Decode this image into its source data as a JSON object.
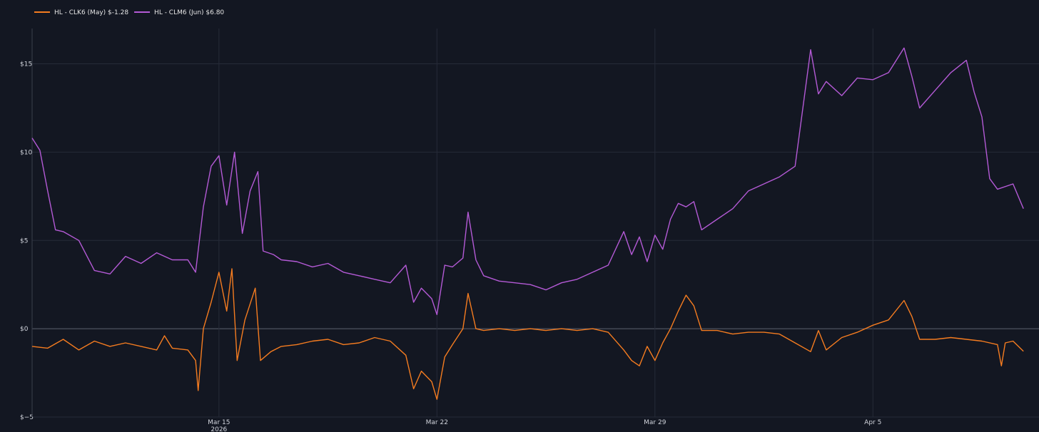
{
  "chart_data": {
    "type": "line",
    "title": "",
    "xlabel": "",
    "ylabel": "",
    "ylim": [
      -5,
      17
    ],
    "xlim": [
      "2026-03-09",
      "2026-04-10T08:00"
    ],
    "grid": true,
    "legend": "top-left",
    "x_ticks": [
      {
        "date": "2026-03-15",
        "label": "Mar 15",
        "sublabel": "2026"
      },
      {
        "date": "2026-03-22",
        "label": "Mar 22",
        "sublabel": ""
      },
      {
        "date": "2026-03-29",
        "label": "Mar 29",
        "sublabel": ""
      },
      {
        "date": "2026-04-05",
        "label": "Apr 5",
        "sublabel": ""
      }
    ],
    "y_ticks": [
      {
        "value": -5,
        "label": "$−5"
      },
      {
        "value": 0,
        "label": "$0"
      },
      {
        "value": 5,
        "label": "$5"
      },
      {
        "value": 10,
        "label": "$10"
      },
      {
        "value": 15,
        "label": "$15"
      }
    ],
    "series": [
      {
        "name": "HL - CLK6 (May) $-1.28",
        "color": "#f57c20",
        "points": [
          [
            "2026-03-09T00:00",
            -1.0
          ],
          [
            "2026-03-09T12:00",
            -1.1
          ],
          [
            "2026-03-10T00:00",
            -0.6
          ],
          [
            "2026-03-10T12:00",
            -1.2
          ],
          [
            "2026-03-11T00:00",
            -0.7
          ],
          [
            "2026-03-11T12:00",
            -1.0
          ],
          [
            "2026-03-12T00:00",
            -0.8
          ],
          [
            "2026-03-12T12:00",
            -1.0
          ],
          [
            "2026-03-13T00:00",
            -1.2
          ],
          [
            "2026-03-13T06:00",
            -0.4
          ],
          [
            "2026-03-13T12:00",
            -1.1
          ],
          [
            "2026-03-14T00:00",
            -1.2
          ],
          [
            "2026-03-14T06:00",
            -1.8
          ],
          [
            "2026-03-14T08:00",
            -3.5
          ],
          [
            "2026-03-14T12:00",
            0.0
          ],
          [
            "2026-03-14T18:00",
            1.5
          ],
          [
            "2026-03-15T00:00",
            3.2
          ],
          [
            "2026-03-15T06:00",
            1.0
          ],
          [
            "2026-03-15T10:00",
            3.4
          ],
          [
            "2026-03-15T14:00",
            -1.8
          ],
          [
            "2026-03-15T20:00",
            0.5
          ],
          [
            "2026-03-16T04:00",
            2.3
          ],
          [
            "2026-03-16T08:00",
            -1.8
          ],
          [
            "2026-03-16T16:00",
            -1.3
          ],
          [
            "2026-03-17T00:00",
            -1.0
          ],
          [
            "2026-03-17T12:00",
            -0.9
          ],
          [
            "2026-03-18T00:00",
            -0.7
          ],
          [
            "2026-03-18T12:00",
            -0.6
          ],
          [
            "2026-03-19T00:00",
            -0.9
          ],
          [
            "2026-03-19T12:00",
            -0.8
          ],
          [
            "2026-03-20T00:00",
            -0.5
          ],
          [
            "2026-03-20T12:00",
            -0.7
          ],
          [
            "2026-03-21T00:00",
            -1.5
          ],
          [
            "2026-03-21T06:00",
            -3.4
          ],
          [
            "2026-03-21T12:00",
            -2.4
          ],
          [
            "2026-03-21T20:00",
            -3.0
          ],
          [
            "2026-03-22T00:00",
            -4.0
          ],
          [
            "2026-03-22T06:00",
            -1.6
          ],
          [
            "2026-03-22T12:00",
            -0.9
          ],
          [
            "2026-03-22T20:00",
            0.0
          ],
          [
            "2026-03-23T00:00",
            2.0
          ],
          [
            "2026-03-23T06:00",
            0.0
          ],
          [
            "2026-03-23T12:00",
            -0.1
          ],
          [
            "2026-03-24T00:00",
            0.0
          ],
          [
            "2026-03-24T12:00",
            -0.1
          ],
          [
            "2026-03-25T00:00",
            0.0
          ],
          [
            "2026-03-25T12:00",
            -0.1
          ],
          [
            "2026-03-26T00:00",
            0.0
          ],
          [
            "2026-03-26T12:00",
            -0.1
          ],
          [
            "2026-03-27T00:00",
            0.0
          ],
          [
            "2026-03-27T12:00",
            -0.2
          ],
          [
            "2026-03-28T00:00",
            -1.2
          ],
          [
            "2026-03-28T06:00",
            -1.8
          ],
          [
            "2026-03-28T12:00",
            -2.1
          ],
          [
            "2026-03-28T18:00",
            -1.0
          ],
          [
            "2026-03-29T00:00",
            -1.8
          ],
          [
            "2026-03-29T06:00",
            -0.8
          ],
          [
            "2026-03-29T12:00",
            0.0
          ],
          [
            "2026-03-29T18:00",
            1.0
          ],
          [
            "2026-03-30T00:00",
            1.9
          ],
          [
            "2026-03-30T06:00",
            1.3
          ],
          [
            "2026-03-30T12:00",
            -0.1
          ],
          [
            "2026-03-31T00:00",
            -0.1
          ],
          [
            "2026-03-31T12:00",
            -0.3
          ],
          [
            "2026-04-01T00:00",
            -0.2
          ],
          [
            "2026-04-01T12:00",
            -0.2
          ],
          [
            "2026-04-02T00:00",
            -0.3
          ],
          [
            "2026-04-02T12:00",
            -0.8
          ],
          [
            "2026-04-03T00:00",
            -1.3
          ],
          [
            "2026-04-03T06:00",
            -0.1
          ],
          [
            "2026-04-03T12:00",
            -1.2
          ],
          [
            "2026-04-04T00:00",
            -0.5
          ],
          [
            "2026-04-04T12:00",
            -0.2
          ],
          [
            "2026-04-05T00:00",
            0.2
          ],
          [
            "2026-04-05T12:00",
            0.5
          ],
          [
            "2026-04-06T00:00",
            1.6
          ],
          [
            "2026-04-06T06:00",
            0.7
          ],
          [
            "2026-04-06T12:00",
            -0.6
          ],
          [
            "2026-04-07T00:00",
            -0.6
          ],
          [
            "2026-04-07T12:00",
            -0.5
          ],
          [
            "2026-04-08T00:00",
            -0.6
          ],
          [
            "2026-04-08T12:00",
            -0.7
          ],
          [
            "2026-04-09T00:00",
            -0.9
          ],
          [
            "2026-04-09T03:00",
            -2.1
          ],
          [
            "2026-04-09T06:00",
            -0.8
          ],
          [
            "2026-04-09T12:00",
            -0.7
          ],
          [
            "2026-04-09T20:00",
            -1.28
          ]
        ]
      },
      {
        "name": "HL - CLM6 (Jun) $6.80",
        "color": "#b45ad6",
        "points": [
          [
            "2026-03-09T00:00",
            10.8
          ],
          [
            "2026-03-09T06:00",
            10.1
          ],
          [
            "2026-03-09T12:00",
            7.8
          ],
          [
            "2026-03-09T18:00",
            5.6
          ],
          [
            "2026-03-10T00:00",
            5.5
          ],
          [
            "2026-03-10T12:00",
            5.0
          ],
          [
            "2026-03-11T00:00",
            3.3
          ],
          [
            "2026-03-11T12:00",
            3.1
          ],
          [
            "2026-03-12T00:00",
            4.1
          ],
          [
            "2026-03-12T12:00",
            3.7
          ],
          [
            "2026-03-13T00:00",
            4.3
          ],
          [
            "2026-03-13T12:00",
            3.9
          ],
          [
            "2026-03-14T00:00",
            3.9
          ],
          [
            "2026-03-14T06:00",
            3.2
          ],
          [
            "2026-03-14T12:00",
            6.9
          ],
          [
            "2026-03-14T18:00",
            9.2
          ],
          [
            "2026-03-15T00:00",
            9.8
          ],
          [
            "2026-03-15T06:00",
            7.0
          ],
          [
            "2026-03-15T12:00",
            10.0
          ],
          [
            "2026-03-15T18:00",
            5.4
          ],
          [
            "2026-03-16T00:00",
            7.8
          ],
          [
            "2026-03-16T06:00",
            8.9
          ],
          [
            "2026-03-16T10:00",
            4.4
          ],
          [
            "2026-03-16T18:00",
            4.2
          ],
          [
            "2026-03-17T00:00",
            3.9
          ],
          [
            "2026-03-17T12:00",
            3.8
          ],
          [
            "2026-03-18T00:00",
            3.5
          ],
          [
            "2026-03-18T12:00",
            3.7
          ],
          [
            "2026-03-19T00:00",
            3.2
          ],
          [
            "2026-03-19T12:00",
            3.0
          ],
          [
            "2026-03-20T00:00",
            2.8
          ],
          [
            "2026-03-20T12:00",
            2.6
          ],
          [
            "2026-03-21T00:00",
            3.6
          ],
          [
            "2026-03-21T06:00",
            1.5
          ],
          [
            "2026-03-21T12:00",
            2.3
          ],
          [
            "2026-03-21T20:00",
            1.7
          ],
          [
            "2026-03-22T00:00",
            0.8
          ],
          [
            "2026-03-22T06:00",
            3.6
          ],
          [
            "2026-03-22T12:00",
            3.5
          ],
          [
            "2026-03-22T20:00",
            4.0
          ],
          [
            "2026-03-23T00:00",
            6.6
          ],
          [
            "2026-03-23T06:00",
            3.9
          ],
          [
            "2026-03-23T12:00",
            3.0
          ],
          [
            "2026-03-24T00:00",
            2.7
          ],
          [
            "2026-03-24T12:00",
            2.6
          ],
          [
            "2026-03-25T00:00",
            2.5
          ],
          [
            "2026-03-25T12:00",
            2.2
          ],
          [
            "2026-03-26T00:00",
            2.6
          ],
          [
            "2026-03-26T12:00",
            2.8
          ],
          [
            "2026-03-27T00:00",
            3.2
          ],
          [
            "2026-03-27T12:00",
            3.6
          ],
          [
            "2026-03-28T00:00",
            5.5
          ],
          [
            "2026-03-28T06:00",
            4.2
          ],
          [
            "2026-03-28T12:00",
            5.2
          ],
          [
            "2026-03-28T18:00",
            3.8
          ],
          [
            "2026-03-29T00:00",
            5.3
          ],
          [
            "2026-03-29T06:00",
            4.5
          ],
          [
            "2026-03-29T12:00",
            6.2
          ],
          [
            "2026-03-29T18:00",
            7.1
          ],
          [
            "2026-03-30T00:00",
            6.9
          ],
          [
            "2026-03-30T06:00",
            7.2
          ],
          [
            "2026-03-30T12:00",
            5.6
          ],
          [
            "2026-03-31T00:00",
            6.2
          ],
          [
            "2026-03-31T12:00",
            6.8
          ],
          [
            "2026-04-01T00:00",
            7.8
          ],
          [
            "2026-04-01T12:00",
            8.2
          ],
          [
            "2026-04-02T00:00",
            8.6
          ],
          [
            "2026-04-02T12:00",
            9.2
          ],
          [
            "2026-04-03T00:00",
            15.8
          ],
          [
            "2026-04-03T06:00",
            13.3
          ],
          [
            "2026-04-03T12:00",
            14.0
          ],
          [
            "2026-04-04T00:00",
            13.2
          ],
          [
            "2026-04-04T12:00",
            14.2
          ],
          [
            "2026-04-05T00:00",
            14.1
          ],
          [
            "2026-04-05T12:00",
            14.5
          ],
          [
            "2026-04-06T00:00",
            15.9
          ],
          [
            "2026-04-06T06:00",
            14.3
          ],
          [
            "2026-04-06T12:00",
            12.5
          ],
          [
            "2026-04-07T00:00",
            13.5
          ],
          [
            "2026-04-07T12:00",
            14.5
          ],
          [
            "2026-04-08T00:00",
            15.2
          ],
          [
            "2026-04-08T06:00",
            13.4
          ],
          [
            "2026-04-08T12:00",
            12.0
          ],
          [
            "2026-04-08T18:00",
            8.5
          ],
          [
            "2026-04-09T00:00",
            7.9
          ],
          [
            "2026-04-09T12:00",
            8.2
          ],
          [
            "2026-04-09T20:00",
            6.8
          ]
        ]
      }
    ]
  }
}
